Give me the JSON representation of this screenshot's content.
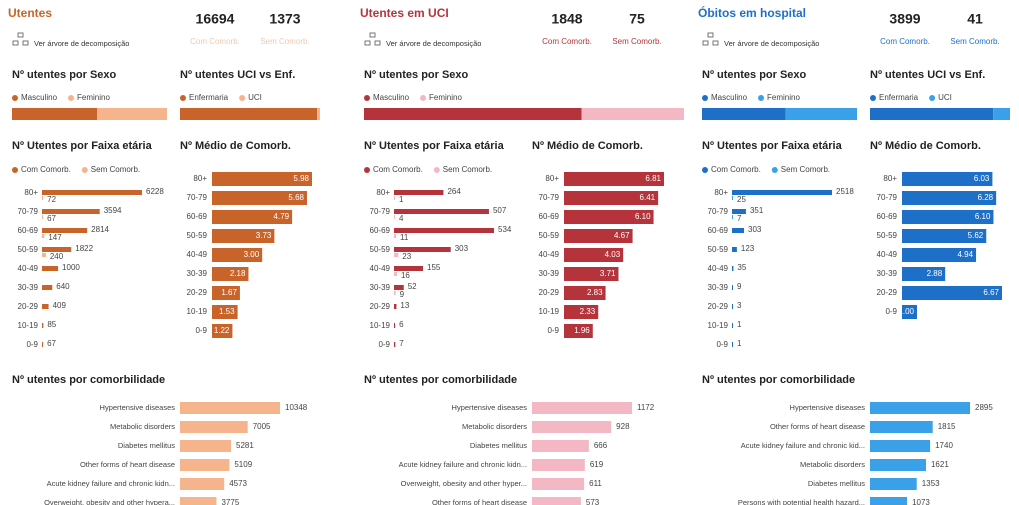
{
  "panels": [
    {
      "title": "Utentes",
      "color": "#c8642a",
      "light": "#f6b48c",
      "kpis": [
        {
          "value": 16694,
          "label": "Com Comorb."
        },
        {
          "value": 1373,
          "label": "Sem Comorb."
        }
      ],
      "link": "Ver árvore de decomposição",
      "sexo": {
        "title": "Nº utentes por Sexo",
        "series": [
          {
            "name": "Masculino",
            "value": 55
          },
          {
            "name": "Feminino",
            "value": 45
          }
        ]
      },
      "uci": {
        "title": "Nº utentes UCI vs Enf.",
        "series": [
          {
            "name": "Enfermaria",
            "value": 98
          },
          {
            "name": "UCI",
            "value": 2
          }
        ]
      },
      "faixa": {
        "title": "Nº Utentes por Faixa etária",
        "legend": [
          "Com Comorb.",
          "Sem Comorb."
        ],
        "categories": [
          "80+",
          "70-79",
          "60-69",
          "50-59",
          "40-49",
          "30-39",
          "20-29",
          "10-19",
          "0-9"
        ],
        "com": [
          6228,
          3594,
          2814,
          1822,
          1000,
          640,
          409,
          85,
          67
        ],
        "sem": [
          72,
          67,
          147,
          240,
          null,
          null,
          null,
          null,
          null
        ]
      },
      "medio": {
        "title": "Nº Médio de Comorb.",
        "categories": [
          "80+",
          "70-79",
          "60-69",
          "50-59",
          "40-49",
          "30-39",
          "20-29",
          "10-19",
          "0-9"
        ],
        "values": [
          5.98,
          5.68,
          4.79,
          3.73,
          3.0,
          2.18,
          1.67,
          1.53,
          1.22
        ],
        "value_labels": [
          "5.98",
          "5.68",
          "4.79",
          "3.73",
          "3.00",
          "2.18",
          "1.67",
          "1.53",
          "1.22"
        ]
      },
      "comorb": {
        "title": "Nº utentes por comorbilidade",
        "categories": [
          "Hypertensive diseases",
          "Metabolic disorders",
          "Diabetes mellitus",
          "Other forms of heart disease",
          "Acute kidney failure and chronic kidn...",
          "Overweight, obesity and other hypera..."
        ],
        "values": [
          10348,
          7005,
          5281,
          5109,
          4573,
          3775
        ]
      }
    },
    {
      "title": "Utentes em UCI",
      "color": "#b5343c",
      "light": "#f3b8c4",
      "kpis": [
        {
          "value": 1848,
          "label": "Com Comorb."
        },
        {
          "value": 75,
          "label": "Sem Comorb."
        }
      ],
      "link": "Ver árvore de decomposição",
      "sexo": {
        "title": "Nº utentes por Sexo",
        "series": [
          {
            "name": "Masculino",
            "value": 68
          },
          {
            "name": "Feminino",
            "value": 32
          }
        ]
      },
      "faixa": {
        "title": "Nº Utentes por Faixa etária",
        "legend": [
          "Com Comorb.",
          "Sem Comorb."
        ],
        "categories": [
          "80+",
          "70-79",
          "60-69",
          "50-59",
          "40-49",
          "30-39",
          "20-29",
          "10-19",
          "0-9"
        ],
        "com": [
          264,
          507,
          534,
          303,
          155,
          52,
          13,
          6,
          7
        ],
        "sem": [
          1,
          4,
          11,
          23,
          16,
          9,
          null,
          null,
          null
        ]
      },
      "medio": {
        "title": "Nº Médio de Comorb.",
        "categories": [
          "80+",
          "70-79",
          "60-69",
          "50-59",
          "40-49",
          "30-39",
          "20-29",
          "10-19",
          "0-9"
        ],
        "values": [
          6.81,
          6.41,
          6.1,
          4.67,
          4.03,
          3.71,
          2.83,
          2.33,
          1.96
        ],
        "value_labels": [
          "6.81",
          "6.41",
          "6.10",
          "4.67",
          "4.03",
          "3.71",
          "2.83",
          "2.33",
          "1.96"
        ]
      },
      "comorb": {
        "title": "Nº utentes por comorbilidade",
        "categories": [
          "Hypertensive diseases",
          "Metabolic disorders",
          "Diabetes mellitus",
          "Acute kidney failure and chronic kidn...",
          "Overweight, obesity and other hyper...",
          "Other forms of heart disease"
        ],
        "values": [
          1172,
          928,
          666,
          619,
          611,
          573
        ]
      }
    },
    {
      "title": "Óbitos em hospital",
      "color": "#1e6fc8",
      "light": "#3aa0e8",
      "kpis": [
        {
          "value": 3899,
          "label": "Com Comorb."
        },
        {
          "value": 41,
          "label": "Sem Comorb."
        }
      ],
      "link": "Ver árvore de decomposição",
      "sexo": {
        "title": "Nº utentes por Sexo",
        "series": [
          {
            "name": "Masculino",
            "value": 54
          },
          {
            "name": "Feminino",
            "value": 46
          }
        ]
      },
      "uci": {
        "title": "Nº utentes UCI vs Enf.",
        "series": [
          {
            "name": "Enfermaria",
            "value": 88
          },
          {
            "name": "UCI",
            "value": 12
          }
        ]
      },
      "faixa": {
        "title": "Nº Utentes por Faixa etária",
        "legend": [
          "Com Comorb.",
          "Sem Comorb."
        ],
        "categories": [
          "80+",
          "70-79",
          "60-69",
          "50-59",
          "40-49",
          "30-39",
          "20-29",
          "10-19",
          "0-9"
        ],
        "com": [
          2518,
          351,
          303,
          123,
          35,
          9,
          3,
          1,
          1
        ],
        "sem": [
          25,
          7,
          null,
          null,
          null,
          null,
          null,
          null,
          null
        ]
      },
      "medio": {
        "title": "Nº Médio de Comorb.",
        "categories": [
          "80+",
          "70-79",
          "60-69",
          "50-59",
          "40-49",
          "30-39",
          "20-29",
          "0-9"
        ],
        "values": [
          6.03,
          6.28,
          6.1,
          5.62,
          4.94,
          2.88,
          6.67,
          1.0
        ],
        "value_labels": [
          "6.03",
          "6.28",
          "6.10",
          "5.62",
          "4.94",
          "2.88",
          "6.67",
          "1.00"
        ]
      },
      "comorb": {
        "title": "Nº utentes por comorbilidade",
        "categories": [
          "Hypertensive diseases",
          "Other forms of heart disease",
          "Acute kidney failure and chronic kid...",
          "Metabolic disorders",
          "Diabetes mellitus",
          "Persons with potential health hazard..."
        ],
        "values": [
          2895,
          1815,
          1740,
          1621,
          1353,
          1073
        ]
      }
    }
  ]
}
